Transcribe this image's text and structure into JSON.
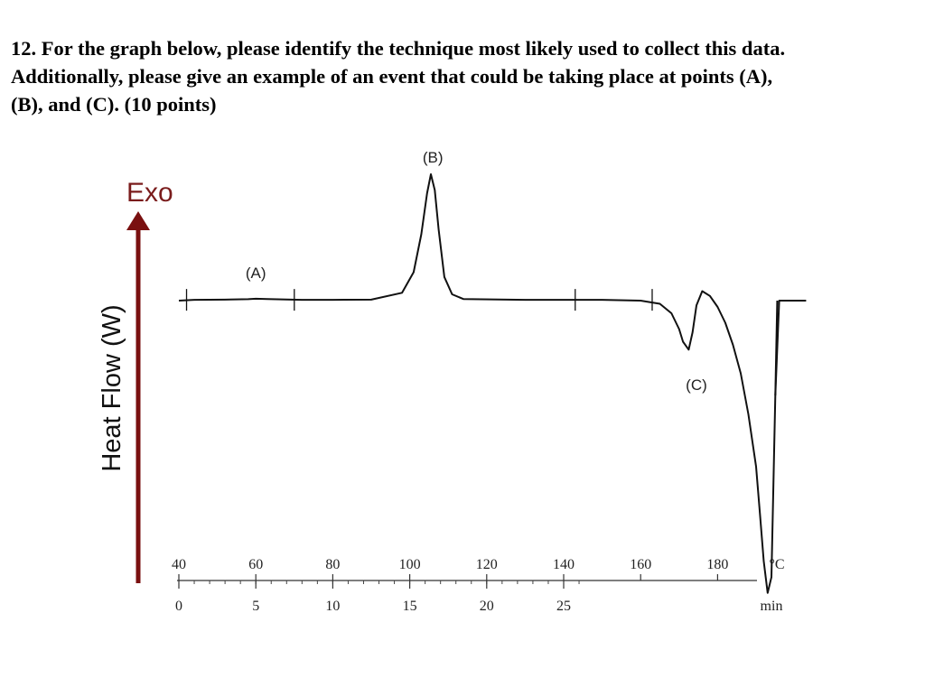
{
  "question": {
    "line1": "12. For the graph below, please identify the technique most likely used to collect this data.",
    "line2": "Additionally, please give an example of an event that could be taking place at points (A),",
    "line3": "(B), and (C). (10 points)"
  },
  "chart_data": {
    "type": "line",
    "title": "",
    "ylabel": "Heat Flow (W)",
    "exo_label": "Exo",
    "temp_unit": "°C",
    "time_unit": "min",
    "temp_ticks": [
      40,
      60,
      80,
      100,
      120,
      140,
      160,
      180
    ],
    "time_ticks": [
      0,
      5,
      10,
      15,
      20,
      25
    ],
    "annotations": [
      {
        "label": "(A)",
        "temp": 60
      },
      {
        "label": "(B)",
        "temp": 106
      },
      {
        "label": "(C)",
        "temp": 174
      }
    ],
    "series": [
      {
        "x_temp": [
          40,
          44,
          52,
          58,
          60,
          63,
          68,
          72,
          80,
          90,
          98,
          101,
          103,
          104.5,
          105.5,
          106.5,
          107.5,
          109,
          111,
          114,
          130,
          150,
          160,
          165,
          168,
          170,
          171,
          172.5,
          173.5,
          174.5,
          176,
          178,
          180,
          182,
          184,
          186,
          188,
          190,
          191,
          192,
          193,
          194,
          195,
          196,
          203
        ],
        "heat_flow": [
          0.0,
          0.05,
          0.06,
          0.09,
          0.12,
          0.1,
          0.07,
          0.05,
          0.05,
          0.06,
          0.5,
          1.8,
          4.2,
          6.8,
          8.0,
          7.0,
          4.5,
          1.5,
          0.4,
          0.1,
          0.05,
          0.05,
          0.0,
          -0.2,
          -0.8,
          -1.8,
          -2.6,
          -3.1,
          -2.0,
          -0.3,
          0.6,
          0.3,
          -0.4,
          -1.4,
          -2.8,
          -4.6,
          -7.2,
          -10.5,
          -13.5,
          -16.5,
          -18.5,
          -17.5,
          -6.0,
          0.0,
          0.0
        ]
      }
    ]
  }
}
